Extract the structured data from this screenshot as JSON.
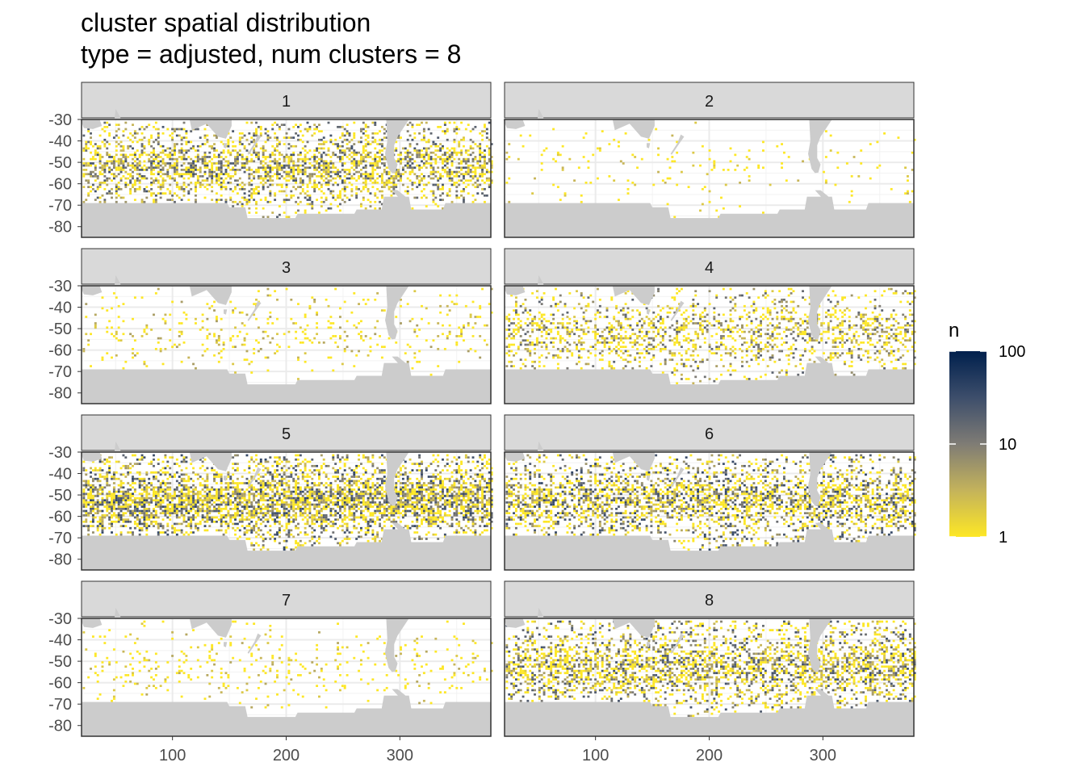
{
  "title": "cluster spatial distribution",
  "subtitle": "type = adjusted, num clusters = 8",
  "chart_data": {
    "type": "heatmap",
    "title": "cluster spatial distribution",
    "subtitle": "type = adjusted, num clusters = 8",
    "xlabel": "",
    "ylabel": "",
    "xlim": [
      20,
      380
    ],
    "ylim": [
      -85,
      -30
    ],
    "x_ticks": [
      100,
      200,
      300
    ],
    "y_ticks": [
      -30,
      -40,
      -50,
      -60,
      -70,
      -80
    ],
    "x_tick_labels": [
      "100",
      "200",
      "300"
    ],
    "y_tick_labels": [
      "-30",
      "-40",
      "-50",
      "-60",
      "-70",
      "-80"
    ],
    "facets": [
      "1",
      "2",
      "3",
      "4",
      "5",
      "6",
      "7",
      "8"
    ],
    "facet_layout": "4 rows x 2 columns",
    "grid": true,
    "land_color": "#cccccc",
    "legend": {
      "title": "n",
      "scale": "log10",
      "breaks": [
        1,
        10,
        100
      ],
      "labels": [
        "1",
        "10",
        "100"
      ],
      "colors": [
        "#fde725",
        "#7f7c75",
        "#00204d"
      ],
      "position": "right"
    },
    "density": [
      {
        "panel": "1",
        "level": "high",
        "count_range": [
          1,
          30
        ]
      },
      {
        "panel": "2",
        "level": "very-low",
        "count_range": [
          1,
          3
        ]
      },
      {
        "panel": "3",
        "level": "low",
        "count_range": [
          1,
          5
        ]
      },
      {
        "panel": "4",
        "level": "medium",
        "count_range": [
          1,
          20
        ]
      },
      {
        "panel": "5",
        "level": "very-high",
        "count_range": [
          1,
          40
        ]
      },
      {
        "panel": "6",
        "level": "high",
        "count_range": [
          1,
          40
        ]
      },
      {
        "panel": "7",
        "level": "low",
        "count_range": [
          1,
          4
        ]
      },
      {
        "panel": "8",
        "level": "high",
        "count_range": [
          1,
          30
        ]
      }
    ]
  }
}
